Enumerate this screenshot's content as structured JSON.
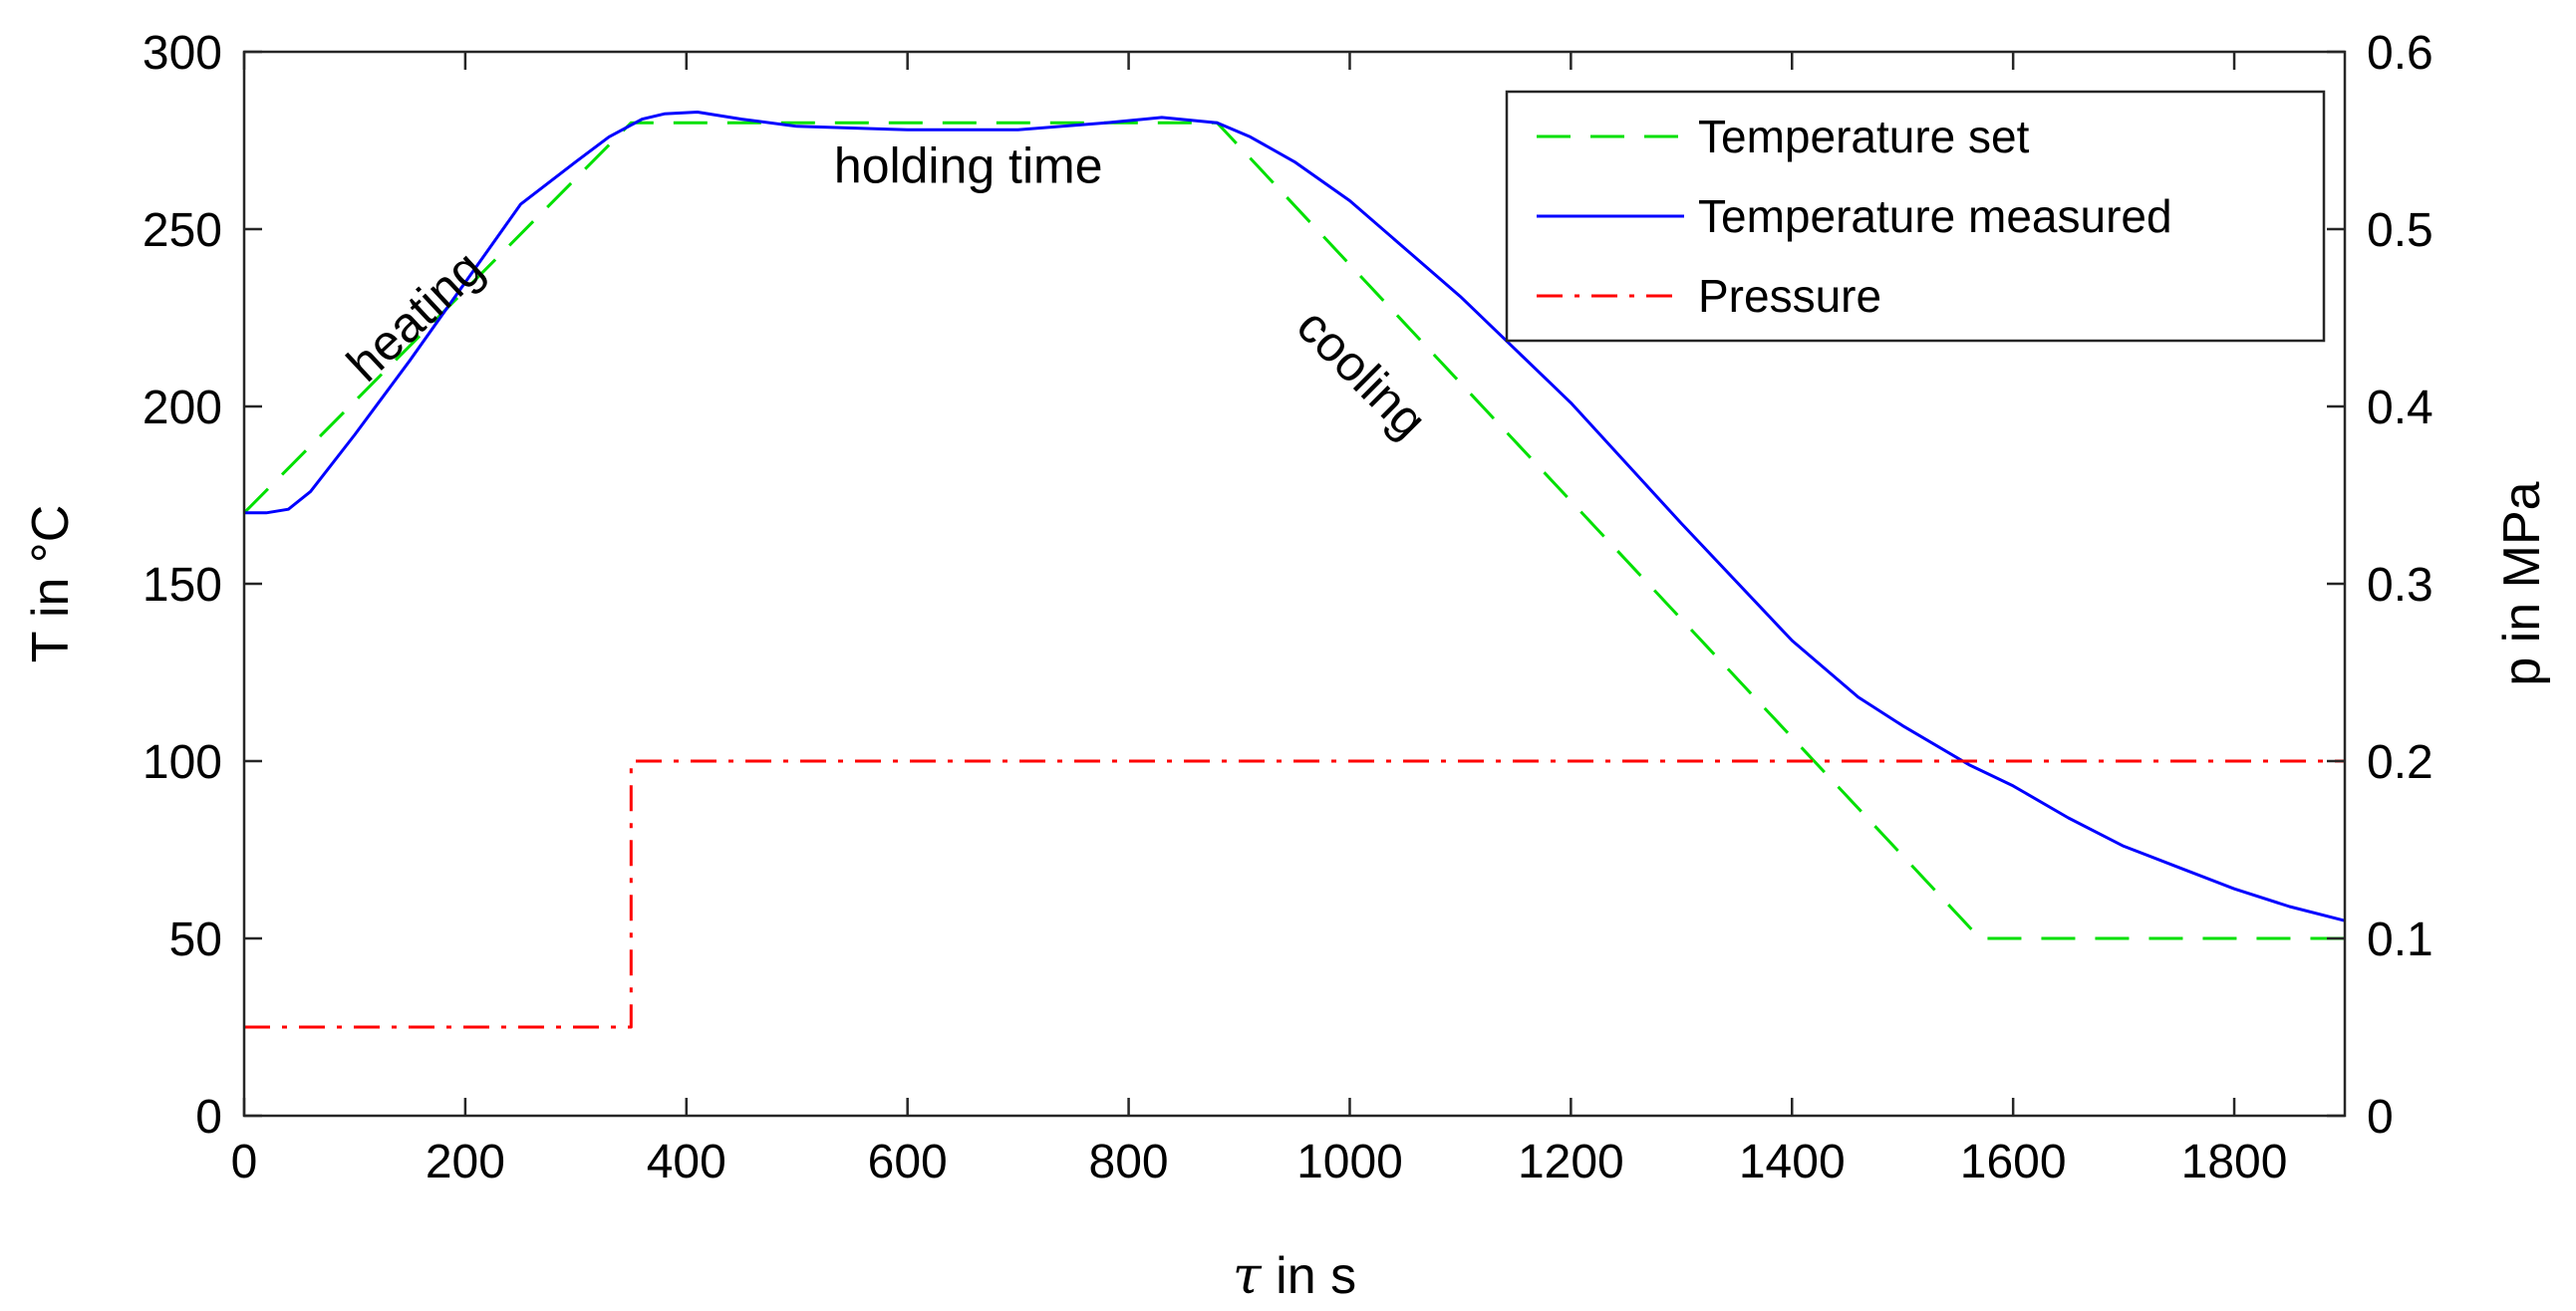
{
  "chart_data": {
    "type": "line",
    "x_axis": {
      "label_symbol": "τ",
      "label_rest": " in s",
      "range": [
        0,
        1900
      ],
      "ticks": [
        0,
        200,
        400,
        600,
        800,
        1000,
        1200,
        1400,
        1600,
        1800
      ]
    },
    "y_axis_left": {
      "label": "T in °C",
      "range": [
        0,
        300
      ],
      "ticks": [
        0,
        50,
        100,
        150,
        200,
        250,
        300
      ]
    },
    "y_axis_right": {
      "label": "p in MPa",
      "range": [
        0,
        0.6
      ],
      "ticks": [
        "0",
        "0.1",
        "0.2",
        "0.3",
        "0.4",
        "0.5",
        "0.6"
      ]
    },
    "series": [
      {
        "name": "Temperature set",
        "axis": "left",
        "color": "#00e000",
        "style": "dashed",
        "x": [
          0,
          350,
          880,
          1570,
          1900
        ],
        "y": [
          170,
          280,
          280,
          50,
          50
        ]
      },
      {
        "name": "Temperature measured",
        "axis": "left",
        "color": "#0000ff",
        "style": "solid",
        "x": [
          0,
          20,
          40,
          60,
          100,
          150,
          200,
          250,
          300,
          330,
          360,
          380,
          410,
          450,
          500,
          600,
          700,
          780,
          830,
          880,
          910,
          950,
          1000,
          1100,
          1200,
          1300,
          1400,
          1460,
          1500,
          1560,
          1600,
          1650,
          1700,
          1750,
          1800,
          1850,
          1900
        ],
        "y": [
          170,
          170,
          171,
          176,
          192,
          213,
          235,
          257,
          269,
          276,
          281,
          282.5,
          283,
          281,
          279,
          278,
          278,
          280,
          281.5,
          280,
          276,
          269,
          258,
          231,
          201,
          167,
          134,
          118,
          110,
          99,
          93,
          84,
          76,
          70,
          64,
          59,
          55
        ]
      },
      {
        "name": "Pressure",
        "axis": "right",
        "color": "#ff0000",
        "style": "dashdot",
        "x": [
          0,
          350,
          350,
          1900
        ],
        "y": [
          0.05,
          0.05,
          0.2,
          0.2
        ]
      }
    ],
    "annotations": [
      {
        "text": "heating",
        "x": 165,
        "y": 222,
        "rotation": -43
      },
      {
        "text": "holding time",
        "x": 655,
        "y": 263,
        "rotation": 0
      },
      {
        "text": "cooling",
        "x": 1000,
        "y": 206,
        "rotation": 45
      }
    ],
    "legend": {
      "position": "top-right"
    }
  }
}
